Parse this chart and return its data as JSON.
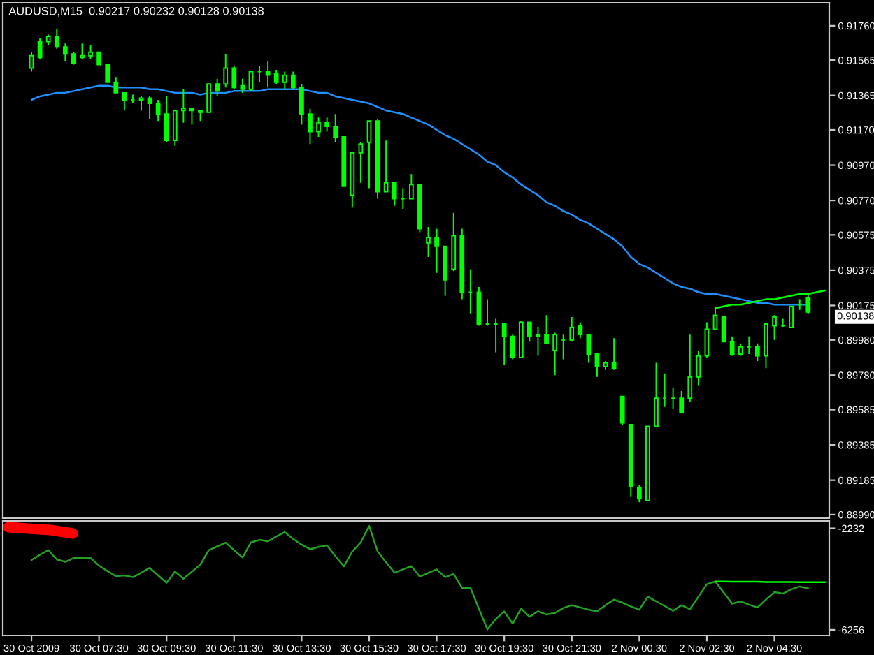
{
  "chart_data": [
    {
      "type": "candlestick",
      "title": "AUDUSD,M15  0.90217 0.90232 0.90128 0.90138",
      "categories": [
        null,
        null,
        null,
        null,
        null,
        null,
        null,
        null,
        null,
        null,
        null,
        null,
        null,
        null,
        null,
        null,
        null,
        null,
        null,
        null,
        null,
        null,
        null,
        null,
        null,
        null,
        null,
        null,
        null,
        null,
        null,
        null,
        null,
        null,
        null,
        null,
        null,
        null,
        null,
        null,
        null,
        null,
        null,
        null,
        null,
        null,
        null,
        null,
        null,
        null,
        null,
        null,
        null,
        null,
        null,
        null,
        null,
        null,
        null,
        null,
        null,
        null,
        null,
        null,
        null,
        null,
        null,
        null,
        null,
        null,
        null,
        null,
        null,
        null,
        null,
        null,
        null,
        null,
        null,
        null,
        null,
        null,
        null,
        null,
        null,
        null,
        null,
        null,
        null,
        null,
        null,
        null,
        null,
        null,
        null
      ],
      "series": [
        {
          "type": "candlestick",
          "color": "#00ff00",
          "ohlc": [
            [
              0.9152,
              0.9161,
              0.915,
              0.9159
            ],
            [
              0.9167,
              0.9169,
              0.9157,
              0.9158
            ],
            [
              0.9167,
              0.9171,
              0.9165,
              0.917
            ],
            [
              0.917,
              0.9174,
              0.9163,
              0.9164
            ],
            [
              0.9164,
              0.9166,
              0.9156,
              0.916
            ],
            [
              0.916,
              0.9161,
              0.9154,
              0.9155
            ],
            [
              0.9158,
              0.9166,
              0.9157,
              0.9159
            ],
            [
              0.9159,
              0.9165,
              0.9157,
              0.9161
            ],
            [
              0.9161,
              0.9161,
              0.9154,
              0.9154
            ],
            [
              0.9154,
              0.9154,
              0.9144,
              0.9144
            ],
            [
              0.9144,
              0.9147,
              0.9138,
              0.9138
            ],
            [
              0.9138,
              0.9138,
              0.9128,
              0.9134
            ],
            [
              0.9134,
              0.9137,
              0.9132,
              0.9134
            ],
            [
              0.9134,
              0.9136,
              0.9128,
              0.9135
            ],
            [
              0.9135,
              0.9136,
              0.9123,
              0.9132
            ],
            [
              0.9132,
              0.9134,
              0.9122,
              0.9126
            ],
            [
              0.9126,
              0.9136,
              0.911,
              0.9111
            ],
            [
              0.9111,
              0.9128,
              0.9108,
              0.9128
            ],
            [
              0.9128,
              0.914,
              0.9121,
              0.9129
            ],
            [
              0.9129,
              0.9129,
              0.912,
              0.9128
            ],
            [
              0.9128,
              0.9128,
              0.9122,
              0.9127
            ],
            [
              0.9127,
              0.9143,
              0.9127,
              0.9143
            ],
            [
              0.9143,
              0.9146,
              0.9136,
              0.9139
            ],
            [
              0.9143,
              0.916,
              0.9141,
              0.9152
            ],
            [
              0.9152,
              0.9153,
              0.914,
              0.9141
            ],
            [
              0.9142,
              0.9146,
              0.9138,
              0.914
            ],
            [
              0.914,
              0.915,
              0.9139,
              0.915
            ],
            [
              0.915,
              0.9153,
              0.9144,
              0.915
            ],
            [
              0.915,
              0.9156,
              0.9141,
              0.9148
            ],
            [
              0.9149,
              0.9151,
              0.9143,
              0.9144
            ],
            [
              0.9144,
              0.915,
              0.914,
              0.9148
            ],
            [
              0.9148,
              0.915,
              0.914,
              0.9141
            ],
            [
              0.9141,
              0.9143,
              0.912,
              0.9126
            ],
            [
              0.9126,
              0.9129,
              0.9109,
              0.9116
            ],
            [
              0.9116,
              0.9124,
              0.9113,
              0.9121
            ],
            [
              0.9121,
              0.9124,
              0.9116,
              0.9119
            ],
            [
              0.9119,
              0.9126,
              0.911,
              0.9113
            ],
            [
              0.9113,
              0.9113,
              0.9085,
              0.9085
            ],
            [
              0.908,
              0.9104,
              0.9073,
              0.9104
            ],
            [
              0.9104,
              0.911,
              0.9087,
              0.9109
            ],
            [
              0.911,
              0.9122,
              0.9084,
              0.9122
            ],
            [
              0.9122,
              0.9123,
              0.9078,
              0.9082
            ],
            [
              0.9082,
              0.9111,
              0.9082,
              0.9087
            ],
            [
              0.9087,
              0.9087,
              0.9074,
              0.9078
            ],
            [
              0.9078,
              0.9084,
              0.9072,
              0.9078
            ],
            [
              0.9078,
              0.9092,
              0.9078,
              0.9086
            ],
            [
              0.9086,
              0.9086,
              0.9059,
              0.9061
            ],
            [
              0.9053,
              0.9062,
              0.9045,
              0.9056
            ],
            [
              0.9056,
              0.9061,
              0.9036,
              0.9051
            ],
            [
              0.9051,
              0.9051,
              0.9023,
              0.9032
            ],
            [
              0.9038,
              0.907,
              0.9037,
              0.9057
            ],
            [
              0.9057,
              0.9061,
              0.9021,
              0.9025
            ],
            [
              0.9025,
              0.9038,
              0.9013,
              0.9025
            ],
            [
              0.9025,
              0.9028,
              0.9006,
              0.9007
            ],
            [
              0.9007,
              0.9021,
              0.9006,
              0.9007
            ],
            [
              0.9007,
              0.901,
              0.8991,
              0.9007
            ],
            [
              0.9007,
              0.9007,
              0.8984,
              0.9
            ],
            [
              0.9,
              0.9001,
              0.8987,
              0.8988
            ],
            [
              0.8988,
              0.9009,
              0.8988,
              0.9008
            ],
            [
              0.9008,
              0.9008,
              0.8997,
              0.9
            ],
            [
              0.9001,
              0.9005,
              0.8989,
              0.9
            ],
            [
              0.9001,
              0.9012,
              0.8996,
              0.8996
            ],
            [
              0.8992,
              0.9002,
              0.8978,
              0.9001
            ],
            [
              0.8998,
              0.9001,
              0.8987,
              0.8998
            ],
            [
              0.8998,
              0.9011,
              0.8997,
              0.9005
            ],
            [
              0.9006,
              0.9008,
              0.8999,
              0.9001
            ],
            [
              0.9001,
              0.9001,
              0.8985,
              0.899
            ],
            [
              0.899,
              0.899,
              0.8977,
              0.8983
            ],
            [
              0.8983,
              0.8986,
              0.8981,
              0.8985
            ],
            [
              0.8985,
              0.8999,
              0.8981,
              0.8982
            ],
            [
              0.8966,
              0.8966,
              0.895,
              0.8951
            ],
            [
              0.895,
              0.895,
              0.8909,
              0.8915
            ],
            [
              0.8914,
              0.8916,
              0.8906,
              0.8908
            ],
            [
              0.8907,
              0.8949,
              0.8907,
              0.8949
            ],
            [
              0.8949,
              0.8985,
              0.8949,
              0.8965
            ],
            [
              0.8965,
              0.8979,
              0.896,
              0.8965
            ],
            [
              0.8965,
              0.8971,
              0.8959,
              0.8965
            ],
            [
              0.8965,
              0.8969,
              0.8957,
              0.8957
            ],
            [
              0.8965,
              0.9001,
              0.8963,
              0.8977
            ],
            [
              0.8977,
              0.8992,
              0.8972,
              0.8989
            ],
            [
              0.8989,
              0.9008,
              0.8988,
              0.9004
            ],
            [
              0.9004,
              0.9016,
              0.9004,
              0.9012
            ],
            [
              0.9011,
              0.9011,
              0.8997,
              0.8997
            ],
            [
              0.8997,
              0.9,
              0.8989,
              0.899
            ],
            [
              0.899,
              0.8996,
              0.8989,
              0.8994
            ],
            [
              0.8994,
              0.9,
              0.899,
              0.8994
            ],
            [
              0.8994,
              0.8996,
              0.8986,
              0.8989
            ],
            [
              0.8989,
              0.9007,
              0.8982,
              0.9007
            ],
            [
              0.9006,
              0.9012,
              0.8998,
              0.9011
            ],
            [
              0.9006,
              0.901,
              0.9005,
              0.9006
            ],
            [
              0.9005,
              0.9017,
              0.9005,
              0.9017
            ],
            [
              0.9018,
              0.9021,
              0.9015,
              0.9018
            ],
            [
              0.90217,
              0.90232,
              0.90128,
              0.90138
            ],
            null,
            null
          ]
        },
        {
          "type": "line",
          "color": "#1e90ff",
          "values": [
            0.9134,
            0.9136,
            0.9137,
            0.9138,
            0.9138,
            0.9139,
            0.914,
            0.9141,
            0.9142,
            0.9142,
            0.9141,
            0.9141,
            0.9141,
            0.9141,
            0.914,
            0.914,
            0.9139,
            0.9138,
            0.9138,
            0.9138,
            0.9137,
            0.9138,
            0.9138,
            0.9138,
            0.9139,
            0.9139,
            0.9139,
            0.9139,
            0.914,
            0.914,
            0.914,
            0.914,
            0.914,
            0.9139,
            0.9138,
            0.9138,
            0.9136,
            0.9135,
            0.9134,
            0.9133,
            0.9132,
            0.913,
            0.9128,
            0.9127,
            0.9126,
            0.9124,
            0.9122,
            0.912,
            0.9117,
            0.9114,
            0.9112,
            0.9109,
            0.9106,
            0.9103,
            0.9099,
            0.9097,
            0.9093,
            0.909,
            0.9086,
            0.9083,
            0.908,
            0.9076,
            0.9074,
            0.9071,
            0.9069,
            0.9066,
            0.9064,
            0.9061,
            0.9058,
            0.9055,
            0.9051,
            0.9045,
            0.9041,
            0.9039,
            0.9036,
            0.9033,
            0.903,
            0.9028,
            0.9027,
            0.9025,
            0.9024,
            0.9024,
            0.9023,
            0.9022,
            0.9021,
            0.902,
            0.9019,
            0.9019,
            0.9018,
            0.9018,
            0.9018,
            0.9018,
            0.9018,
            null,
            null
          ]
        },
        {
          "type": "line",
          "color": "#00ff00",
          "values": [
            null,
            null,
            null,
            null,
            null,
            null,
            null,
            null,
            null,
            null,
            null,
            null,
            null,
            null,
            null,
            null,
            null,
            null,
            null,
            null,
            null,
            null,
            null,
            null,
            null,
            null,
            null,
            null,
            null,
            null,
            null,
            null,
            null,
            null,
            null,
            null,
            null,
            null,
            null,
            null,
            null,
            null,
            null,
            null,
            null,
            null,
            null,
            null,
            null,
            null,
            null,
            null,
            null,
            null,
            null,
            null,
            null,
            null,
            null,
            null,
            null,
            null,
            null,
            null,
            null,
            null,
            null,
            null,
            null,
            null,
            null,
            null,
            null,
            null,
            null,
            null,
            null,
            null,
            null,
            null,
            null,
            0.9016,
            0.9017,
            0.9018,
            0.9018,
            0.9019,
            0.902,
            0.9021,
            0.9021,
            0.9022,
            0.9023,
            0.9024,
            0.9024,
            0.9025,
            0.9026
          ]
        }
      ],
      "ylim": [
        0.8897,
        0.9189
      ],
      "yticks": [
        {
          "value": 0.9176,
          "label": "0.91760"
        },
        0.91565,
        0.91365,
        {
          "value": 0.9117,
          "label": "0.91170"
        },
        {
          "value": 0.9097,
          "label": "0.90970"
        },
        {
          "value": 0.9077,
          "label": "0.90770"
        },
        0.90575,
        0.90375,
        0.90175,
        {
          "value": 0.8998,
          "label": "0.89980"
        },
        {
          "value": 0.8978,
          "label": "0.89780"
        },
        0.89585,
        0.89385,
        0.89185,
        {
          "value": 0.8899,
          "label": "0.88990"
        }
      ],
      "annotations": [
        "0.90138"
      ]
    },
    {
      "type": "line",
      "categories": [
        "30 Oct 2009",
        null,
        null,
        null,
        null,
        null,
        null,
        null,
        "30 Oct 07:30",
        null,
        null,
        null,
        null,
        null,
        null,
        null,
        "30 Oct 09:30",
        null,
        null,
        null,
        null,
        null,
        null,
        null,
        "30 Oct 11:30",
        null,
        null,
        null,
        null,
        null,
        null,
        null,
        "30 Oct 13:30",
        null,
        null,
        null,
        null,
        null,
        null,
        null,
        "30 Oct 15:30",
        null,
        null,
        null,
        null,
        null,
        null,
        null,
        "30 Oct 17:30",
        null,
        null,
        null,
        null,
        null,
        null,
        null,
        "30 Oct 19:30",
        null,
        null,
        null,
        null,
        null,
        null,
        null,
        "30 Oct 21:30",
        null,
        null,
        null,
        null,
        null,
        null,
        null,
        "2 Nov 00:30",
        null,
        null,
        null,
        null,
        null,
        null,
        null,
        "2 Nov 02:30",
        null,
        null,
        null,
        null,
        null,
        null,
        null,
        "2 Nov 04:30",
        null,
        null,
        null,
        null,
        null,
        null
      ],
      "series": [
        {
          "color": "#22a022",
          "values": [
            -3490,
            -3280,
            -3100,
            -3470,
            -3560,
            -3410,
            -3410,
            -3410,
            -3710,
            -3930,
            -4130,
            -4100,
            -4170,
            -3990,
            -3800,
            -4100,
            -4390,
            -3950,
            -4230,
            -3950,
            -3670,
            -3100,
            -2950,
            -2800,
            -3100,
            -3390,
            -2790,
            -2690,
            -2750,
            -2560,
            -2380,
            -2660,
            -2880,
            -3060,
            -2970,
            -2910,
            -3340,
            -3740,
            -3150,
            -2790,
            -2140,
            -3150,
            -3580,
            -3990,
            -3860,
            -3730,
            -4150,
            -4000,
            -3860,
            -4170,
            -4040,
            -4590,
            -4590,
            -5420,
            -6240,
            -5830,
            -5530,
            -6010,
            -5410,
            -5740,
            -5520,
            -5650,
            -5590,
            -5390,
            -5280,
            -5370,
            -5460,
            -5520,
            -5280,
            -5060,
            -5180,
            -5330,
            -5460,
            -4940,
            -5130,
            -5310,
            -5500,
            -5280,
            -5440,
            -4940,
            -4450,
            -4340,
            -4780,
            -5220,
            -5130,
            -5260,
            -5370,
            -5060,
            -4760,
            -4820,
            -4650,
            -4540,
            -4610,
            null,
            null
          ]
        },
        {
          "color": "#00ff00",
          "values": [
            null,
            null,
            null,
            null,
            null,
            null,
            null,
            null,
            null,
            null,
            null,
            null,
            null,
            null,
            null,
            null,
            null,
            null,
            null,
            null,
            null,
            null,
            null,
            null,
            null,
            null,
            null,
            null,
            null,
            null,
            null,
            null,
            null,
            null,
            null,
            null,
            null,
            null,
            null,
            null,
            null,
            null,
            null,
            null,
            null,
            null,
            null,
            null,
            null,
            null,
            null,
            null,
            null,
            null,
            null,
            null,
            null,
            null,
            null,
            null,
            null,
            null,
            null,
            null,
            null,
            null,
            null,
            null,
            null,
            null,
            null,
            null,
            null,
            null,
            null,
            null,
            null,
            null,
            null,
            null,
            null,
            -4340,
            -4340,
            -4350,
            -4350,
            -4350,
            -4350,
            -4360,
            -4360,
            -4360,
            -4360,
            -4370,
            -4370,
            -4370,
            -4370
          ]
        }
      ],
      "ylim": [
        -6480,
        -1940
      ],
      "yticks": [
        -2232,
        -6256
      ]
    }
  ]
}
